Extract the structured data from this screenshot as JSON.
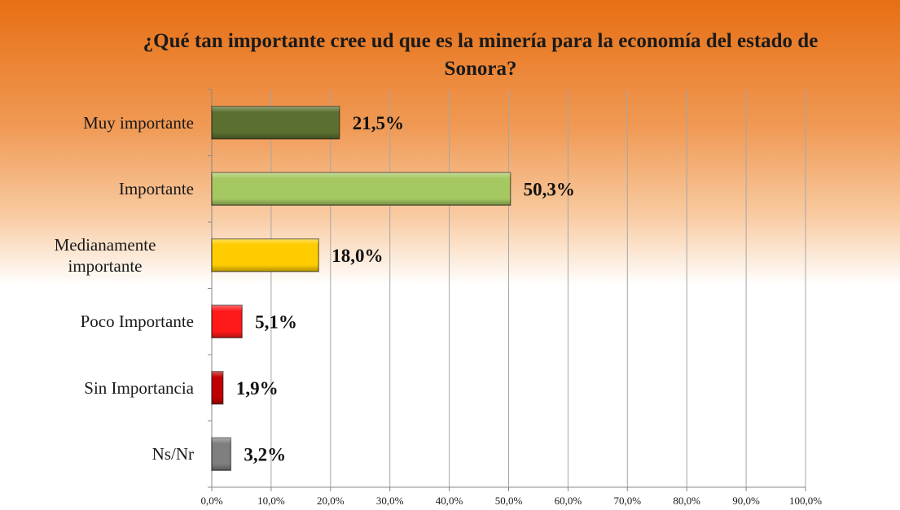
{
  "chart_data": {
    "type": "bar",
    "orientation": "horizontal",
    "title": "¿Qué tan importante cree ud que es la minería para la economía del estado de Sonora?",
    "categories": [
      "Muy importante",
      "Importante",
      "Medianamente importante",
      "Poco Importante",
      "Sin Importancia",
      "Ns/Nr"
    ],
    "values": [
      21.5,
      50.3,
      18.0,
      5.1,
      1.9,
      3.2
    ],
    "value_labels": [
      "21,5%",
      "50,3%",
      "18,0%",
      "5,1%",
      "1,9%",
      "3,2%"
    ],
    "colors": [
      "#5b7030",
      "#a6c862",
      "#ffcc00",
      "#ff1a1a",
      "#c00000",
      "#7f7f7f"
    ],
    "xlim": [
      0,
      100
    ],
    "xticks": [
      {
        "value": 0,
        "label": "0,0%"
      },
      {
        "value": 10,
        "label": "10,0%"
      },
      {
        "value": 20,
        "label": "20,0%"
      },
      {
        "value": 30,
        "label": "30,0%"
      },
      {
        "value": 40,
        "label": "40,0%"
      },
      {
        "value": 50,
        "label": "50,0%"
      },
      {
        "value": 60,
        "label": "60,0%"
      },
      {
        "value": 70,
        "label": "70,0%"
      },
      {
        "value": 80,
        "label": "80,0%"
      },
      {
        "value": 90,
        "label": "90,0%"
      },
      {
        "value": 100,
        "label": "100,0%"
      }
    ],
    "grid": true
  }
}
